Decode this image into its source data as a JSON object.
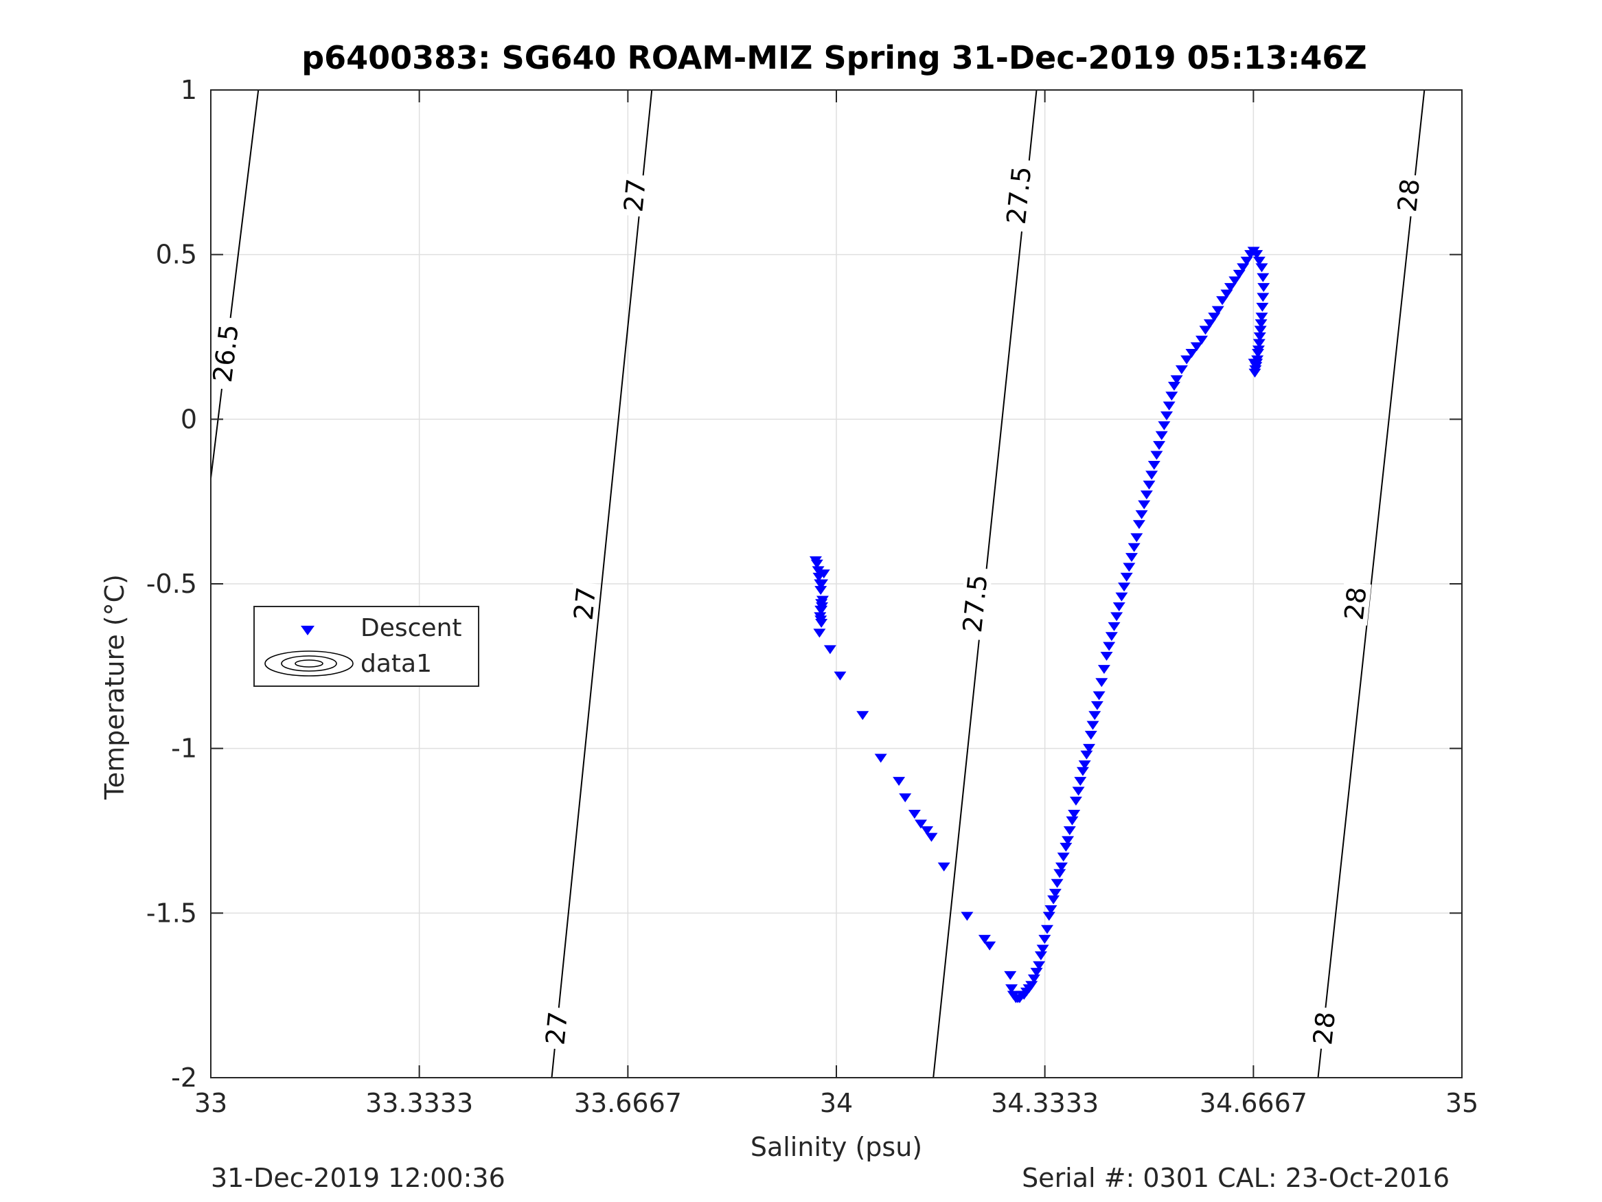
{
  "chart_data": {
    "type": "scatter",
    "title": "p6400383: SG640 ROAM-MIZ Spring 31-Dec-2019 05:13:46Z",
    "xlabel": "Salinity (psu)",
    "ylabel": "Temperature (°C)",
    "xlim": [
      33,
      35
    ],
    "ylim": [
      -2,
      1
    ],
    "xticks": [
      "33",
      "33.3333",
      "33.6667",
      "34",
      "34.3333",
      "34.6667",
      "35"
    ],
    "yticks": [
      "1",
      "0.5",
      "0",
      "-0.5",
      "-1",
      "-1.5",
      "-2"
    ],
    "grid": true,
    "legend": {
      "placement": "middle-left",
      "entries": [
        "Descent",
        "data1"
      ]
    },
    "footer_left": "31-Dec-2019 12:00:36",
    "footer_right": "Serial #: 0301  CAL: 23-Oct-2016",
    "colors": {
      "descent": "#0000ff",
      "contour": "#000000",
      "grid": "#dfdfdf"
    },
    "series": [
      {
        "name": "Descent",
        "marker": "triangle-down",
        "x": [
          33.967,
          33.969,
          33.971,
          33.972,
          33.974,
          33.975,
          33.977,
          33.98,
          33.976,
          33.975,
          33.974,
          33.976,
          33.977,
          33.975,
          33.973,
          33.976,
          33.978,
          33.99,
          34.006,
          34.042,
          34.071,
          34.1,
          34.11,
          34.125,
          34.135,
          34.145,
          34.152,
          34.172,
          34.209,
          34.237,
          34.245,
          34.278,
          34.28,
          34.283,
          34.287,
          34.29,
          34.293,
          34.297,
          34.3,
          34.304,
          34.308,
          34.312,
          34.316,
          34.32,
          34.324,
          34.327,
          34.33,
          34.333,
          34.337,
          34.34,
          34.343,
          34.347,
          34.35,
          34.353,
          34.357,
          34.36,
          34.363,
          34.367,
          34.37,
          34.373,
          34.377,
          34.38,
          34.383,
          34.387,
          34.39,
          34.394,
          34.397,
          34.4,
          34.404,
          34.407,
          34.41,
          34.413,
          34.417,
          34.42,
          34.424,
          34.428,
          34.432,
          34.436,
          34.44,
          34.444,
          34.448,
          34.452,
          34.456,
          34.46,
          34.464,
          34.468,
          34.472,
          34.476,
          34.48,
          34.484,
          34.488,
          34.492,
          34.496,
          34.5,
          34.504,
          34.508,
          34.512,
          34.516,
          34.52,
          34.524,
          34.528,
          34.532,
          34.536,
          34.54,
          34.544,
          34.552,
          34.56,
          34.568,
          34.576,
          34.584,
          34.59,
          34.597,
          34.604,
          34.61,
          34.617,
          34.624,
          34.63,
          34.637,
          34.644,
          34.65,
          34.656,
          34.662,
          34.667,
          34.672,
          34.676,
          34.68,
          34.682,
          34.683,
          34.682,
          34.681,
          34.68,
          34.679,
          34.678,
          34.677,
          34.676,
          34.675,
          34.674,
          34.673,
          34.672,
          34.671,
          34.67,
          34.669,
          34.668
        ],
        "y": [
          -0.43,
          -0.44,
          -0.46,
          -0.48,
          -0.5,
          -0.52,
          -0.5,
          -0.47,
          -0.56,
          -0.58,
          -0.6,
          -0.62,
          -0.57,
          -0.61,
          -0.65,
          -0.58,
          -0.55,
          -0.7,
          -0.78,
          -0.9,
          -1.03,
          -1.1,
          -1.15,
          -1.2,
          -1.23,
          -1.25,
          -1.27,
          -1.36,
          -1.51,
          -1.58,
          -1.6,
          -1.69,
          -1.73,
          -1.75,
          -1.76,
          -1.76,
          -1.76,
          -1.75,
          -1.75,
          -1.74,
          -1.73,
          -1.72,
          -1.7,
          -1.68,
          -1.66,
          -1.63,
          -1.61,
          -1.58,
          -1.55,
          -1.51,
          -1.49,
          -1.46,
          -1.44,
          -1.41,
          -1.38,
          -1.36,
          -1.33,
          -1.3,
          -1.28,
          -1.25,
          -1.22,
          -1.2,
          -1.16,
          -1.13,
          -1.1,
          -1.07,
          -1.05,
          -1.02,
          -1.0,
          -0.96,
          -0.93,
          -0.9,
          -0.87,
          -0.84,
          -0.8,
          -0.76,
          -0.72,
          -0.69,
          -0.66,
          -0.63,
          -0.6,
          -0.57,
          -0.54,
          -0.51,
          -0.48,
          -0.45,
          -0.42,
          -0.39,
          -0.36,
          -0.32,
          -0.29,
          -0.26,
          -0.23,
          -0.2,
          -0.17,
          -0.14,
          -0.11,
          -0.08,
          -0.05,
          -0.02,
          0.01,
          0.04,
          0.07,
          0.1,
          0.12,
          0.15,
          0.18,
          0.2,
          0.22,
          0.24,
          0.27,
          0.29,
          0.31,
          0.33,
          0.36,
          0.38,
          0.4,
          0.42,
          0.44,
          0.46,
          0.48,
          0.5,
          0.51,
          0.5,
          0.48,
          0.46,
          0.43,
          0.4,
          0.37,
          0.34,
          0.31,
          0.29,
          0.27,
          0.25,
          0.23,
          0.21,
          0.2,
          0.18,
          0.17,
          0.16,
          0.15,
          0.14,
          0.17
        ]
      }
    ],
    "contours": [
      {
        "name": "data1",
        "lines": [
          {
            "level": "26.5",
            "points": [
              [
                33.0,
                -0.18
              ],
              [
                33.076,
                1.0
              ]
            ],
            "labels": [
              [
                33.024,
                0.2
              ]
            ]
          },
          {
            "level": "27",
            "points": [
              [
                33.545,
                -2.0
              ],
              [
                33.705,
                1.0
              ]
            ],
            "labels": [
              [
                33.553,
                -1.85
              ],
              [
                33.598,
                -0.56
              ],
              [
                33.678,
                0.68
              ]
            ]
          },
          {
            "level": "27.5",
            "points": [
              [
                34.155,
                -2.0
              ],
              [
                34.32,
                1.0
              ]
            ],
            "labels": [
              [
                34.222,
                -0.56
              ],
              [
                34.292,
                0.68
              ]
            ]
          },
          {
            "level": "28",
            "points": [
              [
                34.77,
                -2.0
              ],
              [
                34.94,
                1.0
              ]
            ],
            "labels": [
              [
                34.78,
                -1.85
              ],
              [
                34.83,
                -0.56
              ],
              [
                34.915,
                0.68
              ]
            ]
          }
        ]
      }
    ]
  }
}
